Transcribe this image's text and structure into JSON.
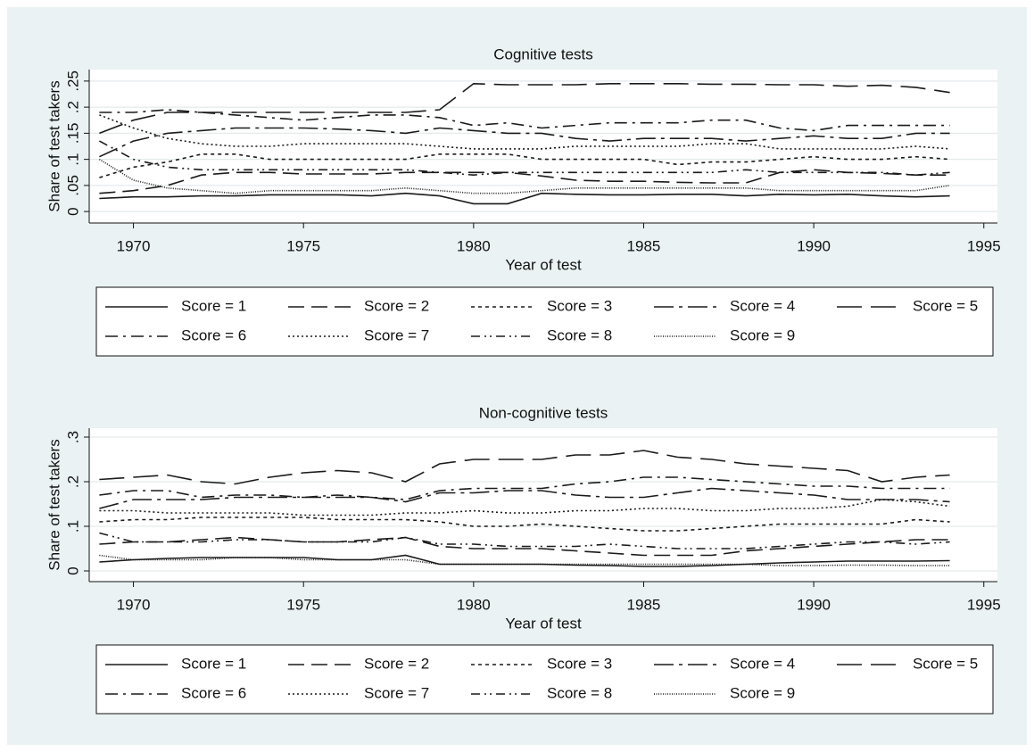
{
  "chart_data": [
    {
      "type": "line",
      "title": "Cognitive tests",
      "x_label": "Year of test",
      "y_label": "Share of test takers",
      "x": [
        1969,
        1970,
        1971,
        1972,
        1973,
        1974,
        1975,
        1976,
        1977,
        1978,
        1979,
        1980,
        1981,
        1982,
        1983,
        1984,
        1985,
        1986,
        1987,
        1988,
        1989,
        1990,
        1991,
        1992,
        1993,
        1994
      ],
      "xlim": [
        1968.7,
        1995.4
      ],
      "xticks": [
        1970,
        1975,
        1980,
        1985,
        1990,
        1995
      ],
      "ylim": [
        -0.022,
        0.272
      ],
      "yticks": [
        0,
        {
          "value": 0.05,
          "label": ".05"
        },
        {
          "value": 0.1,
          "label": ".1"
        },
        {
          "value": 0.15,
          "label": ".15"
        },
        {
          "value": 0.2,
          "label": ".2"
        },
        {
          "value": 0.25,
          "label": ".25"
        }
      ],
      "grid": true,
      "series": [
        {
          "name": "Score = 1",
          "color": "#1a1a1a",
          "values": [
            0.025,
            0.028,
            0.028,
            0.03,
            0.03,
            0.032,
            0.032,
            0.032,
            0.03,
            0.035,
            0.03,
            0.015,
            0.015,
            0.035,
            0.033,
            0.032,
            0.032,
            0.033,
            0.033,
            0.03,
            0.033,
            0.032,
            0.033,
            0.03,
            0.028,
            0.03
          ]
        },
        {
          "name": "Score = 2",
          "color": "#1a1a1a",
          "values": [
            0.035,
            0.04,
            0.05,
            0.07,
            0.075,
            0.075,
            0.072,
            0.072,
            0.072,
            0.075,
            0.075,
            0.075,
            0.075,
            0.068,
            0.06,
            0.058,
            0.058,
            0.056,
            0.055,
            0.055,
            0.075,
            0.08,
            0.075,
            0.073,
            0.07,
            0.07
          ]
        },
        {
          "name": "Score = 3",
          "color": "#1a1a1a",
          "values": [
            0.065,
            0.085,
            0.095,
            0.11,
            0.11,
            0.1,
            0.1,
            0.1,
            0.1,
            0.1,
            0.11,
            0.11,
            0.11,
            0.1,
            0.1,
            0.1,
            0.1,
            0.09,
            0.095,
            0.095,
            0.1,
            0.105,
            0.1,
            0.1,
            0.105,
            0.1
          ]
        },
        {
          "name": "Score = 4",
          "color": "#1a1a1a",
          "values": [
            0.105,
            0.135,
            0.15,
            0.155,
            0.16,
            0.16,
            0.16,
            0.158,
            0.155,
            0.15,
            0.16,
            0.155,
            0.15,
            0.15,
            0.14,
            0.135,
            0.14,
            0.14,
            0.14,
            0.135,
            0.14,
            0.145,
            0.14,
            0.14,
            0.15,
            0.15
          ]
        },
        {
          "name": "Score = 5",
          "color": "#1a1a1a",
          "values": [
            0.15,
            0.175,
            0.19,
            0.19,
            0.19,
            0.19,
            0.19,
            0.19,
            0.19,
            0.19,
            0.195,
            0.245,
            0.243,
            0.243,
            0.243,
            0.245,
            0.245,
            0.245,
            0.244,
            0.244,
            0.243,
            0.243,
            0.24,
            0.242,
            0.238,
            0.228
          ]
        },
        {
          "name": "Score = 6",
          "color": "#1a1a1a",
          "values": [
            0.19,
            0.19,
            0.195,
            0.19,
            0.185,
            0.18,
            0.175,
            0.18,
            0.185,
            0.185,
            0.18,
            0.165,
            0.17,
            0.16,
            0.165,
            0.17,
            0.17,
            0.17,
            0.175,
            0.175,
            0.16,
            0.155,
            0.165,
            0.165,
            0.165,
            0.165
          ]
        },
        {
          "name": "Score = 7",
          "color": "#1a1a1a",
          "values": [
            0.185,
            0.16,
            0.14,
            0.13,
            0.125,
            0.125,
            0.13,
            0.13,
            0.13,
            0.13,
            0.125,
            0.12,
            0.12,
            0.12,
            0.125,
            0.125,
            0.125,
            0.125,
            0.13,
            0.13,
            0.12,
            0.12,
            0.12,
            0.12,
            0.125,
            0.12
          ]
        },
        {
          "name": "Score = 8",
          "color": "#1a1a1a",
          "values": [
            0.135,
            0.1,
            0.085,
            0.08,
            0.08,
            0.08,
            0.08,
            0.08,
            0.08,
            0.08,
            0.075,
            0.07,
            0.075,
            0.075,
            0.075,
            0.075,
            0.075,
            0.075,
            0.075,
            0.08,
            0.075,
            0.075,
            0.075,
            0.075,
            0.07,
            0.075
          ]
        },
        {
          "name": "Score = 9",
          "color": "#1a1a1a",
          "values": [
            0.1,
            0.06,
            0.045,
            0.04,
            0.035,
            0.04,
            0.04,
            0.04,
            0.04,
            0.045,
            0.04,
            0.035,
            0.035,
            0.04,
            0.045,
            0.045,
            0.045,
            0.045,
            0.045,
            0.045,
            0.04,
            0.04,
            0.04,
            0.04,
            0.04,
            0.05
          ]
        }
      ]
    },
    {
      "type": "line",
      "title": "Non-cognitive tests",
      "x_label": "Year of test",
      "y_label": "Share of test takers",
      "x": [
        1969,
        1970,
        1971,
        1972,
        1973,
        1974,
        1975,
        1976,
        1977,
        1978,
        1979,
        1980,
        1981,
        1982,
        1983,
        1984,
        1985,
        1986,
        1987,
        1988,
        1989,
        1990,
        1991,
        1992,
        1993,
        1994
      ],
      "xlim": [
        1968.7,
        1995.4
      ],
      "xticks": [
        1970,
        1975,
        1980,
        1985,
        1990,
        1995
      ],
      "ylim": [
        -0.024,
        0.32
      ],
      "yticks": [
        0,
        {
          "value": 0.1,
          "label": ".1"
        },
        {
          "value": 0.2,
          "label": ".2"
        },
        {
          "value": 0.3,
          "label": ".3"
        }
      ],
      "grid": true,
      "series": [
        {
          "name": "Score = 1",
          "color": "#1a1a1a",
          "values": [
            0.02,
            0.025,
            0.028,
            0.03,
            0.03,
            0.03,
            0.03,
            0.025,
            0.025,
            0.035,
            0.015,
            0.015,
            0.015,
            0.015,
            0.013,
            0.012,
            0.01,
            0.01,
            0.012,
            0.015,
            0.018,
            0.02,
            0.022,
            0.022,
            0.022,
            0.023
          ]
        },
        {
          "name": "Score = 2",
          "color": "#1a1a1a",
          "values": [
            0.06,
            0.065,
            0.065,
            0.07,
            0.075,
            0.07,
            0.065,
            0.065,
            0.07,
            0.075,
            0.055,
            0.05,
            0.05,
            0.05,
            0.045,
            0.04,
            0.035,
            0.035,
            0.035,
            0.045,
            0.05,
            0.055,
            0.06,
            0.065,
            0.07,
            0.07
          ]
        },
        {
          "name": "Score = 3",
          "color": "#1a1a1a",
          "values": [
            0.11,
            0.115,
            0.115,
            0.12,
            0.12,
            0.12,
            0.12,
            0.115,
            0.115,
            0.115,
            0.11,
            0.1,
            0.1,
            0.105,
            0.1,
            0.095,
            0.09,
            0.09,
            0.095,
            0.1,
            0.105,
            0.105,
            0.105,
            0.105,
            0.115,
            0.11
          ]
        },
        {
          "name": "Score = 4",
          "color": "#1a1a1a",
          "values": [
            0.14,
            0.16,
            0.16,
            0.16,
            0.165,
            0.165,
            0.165,
            0.165,
            0.165,
            0.155,
            0.175,
            0.175,
            0.18,
            0.18,
            0.17,
            0.165,
            0.165,
            0.175,
            0.185,
            0.18,
            0.175,
            0.17,
            0.16,
            0.16,
            0.16,
            0.155
          ]
        },
        {
          "name": "Score = 5",
          "color": "#1a1a1a",
          "values": [
            0.205,
            0.21,
            0.215,
            0.2,
            0.195,
            0.21,
            0.22,
            0.225,
            0.22,
            0.2,
            0.24,
            0.25,
            0.25,
            0.25,
            0.26,
            0.26,
            0.27,
            0.255,
            0.25,
            0.24,
            0.235,
            0.23,
            0.225,
            0.2,
            0.21,
            0.215
          ]
        },
        {
          "name": "Score = 6",
          "color": "#1a1a1a",
          "values": [
            0.17,
            0.18,
            0.18,
            0.165,
            0.17,
            0.17,
            0.165,
            0.17,
            0.165,
            0.16,
            0.18,
            0.185,
            0.185,
            0.185,
            0.195,
            0.2,
            0.21,
            0.21,
            0.205,
            0.2,
            0.195,
            0.19,
            0.19,
            0.185,
            0.185,
            0.185
          ]
        },
        {
          "name": "Score = 7",
          "color": "#1a1a1a",
          "values": [
            0.135,
            0.135,
            0.13,
            0.13,
            0.13,
            0.13,
            0.125,
            0.125,
            0.125,
            0.13,
            0.13,
            0.135,
            0.13,
            0.13,
            0.135,
            0.135,
            0.14,
            0.14,
            0.135,
            0.135,
            0.14,
            0.14,
            0.145,
            0.16,
            0.155,
            0.145
          ]
        },
        {
          "name": "Score = 8",
          "color": "#1a1a1a",
          "values": [
            0.085,
            0.065,
            0.065,
            0.065,
            0.07,
            0.07,
            0.065,
            0.065,
            0.065,
            0.075,
            0.06,
            0.06,
            0.055,
            0.055,
            0.055,
            0.06,
            0.055,
            0.05,
            0.05,
            0.05,
            0.055,
            0.06,
            0.065,
            0.065,
            0.06,
            0.065
          ]
        },
        {
          "name": "Score = 9",
          "color": "#1a1a1a",
          "values": [
            0.035,
            0.025,
            0.025,
            0.025,
            0.03,
            0.03,
            0.025,
            0.025,
            0.025,
            0.025,
            0.015,
            0.015,
            0.015,
            0.015,
            0.015,
            0.015,
            0.015,
            0.015,
            0.015,
            0.015,
            0.012,
            0.012,
            0.013,
            0.013,
            0.012,
            0.012
          ]
        }
      ]
    }
  ]
}
